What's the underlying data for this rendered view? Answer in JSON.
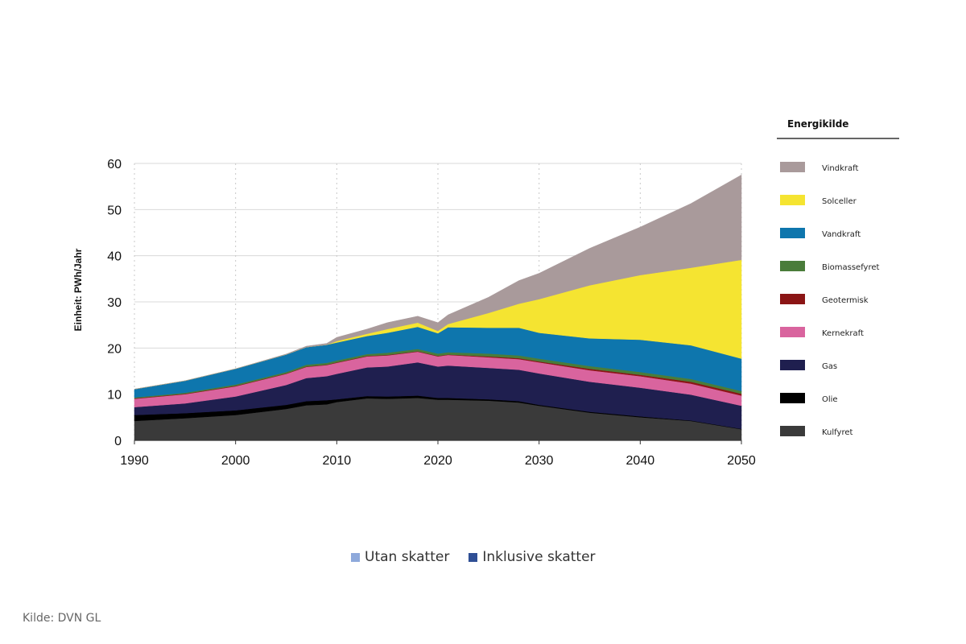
{
  "chart_data": {
    "type": "area",
    "stacked": true,
    "title": "",
    "xlabel": "",
    "ylabel": "Einheit: PWh/Jahr",
    "xlim": [
      1990,
      2050
    ],
    "ylim": [
      0,
      60
    ],
    "x_ticks": [
      "1990",
      "2000",
      "2010",
      "2020",
      "2030",
      "2040",
      "2050"
    ],
    "y_ticks": [
      "0",
      "10",
      "20",
      "30",
      "40",
      "50",
      "60"
    ],
    "grid": {
      "horizontal": "solid",
      "vertical": "dotted"
    },
    "x": [
      1990,
      1995,
      2000,
      2005,
      2007,
      2009,
      2010,
      2013,
      2015,
      2018,
      2020,
      2021,
      2025,
      2028,
      2030,
      2035,
      2040,
      2045,
      2050
    ],
    "series": [
      {
        "name": "Kulfyret",
        "color": "#3a3a3a",
        "values": [
          4.2,
          4.8,
          5.5,
          6.8,
          7.6,
          7.8,
          8.3,
          9.1,
          9.0,
          9.2,
          8.8,
          8.8,
          8.6,
          8.2,
          7.5,
          6.0,
          5.0,
          4.2,
          2.4
        ]
      },
      {
        "name": "Olie",
        "color": "#000000",
        "values": [
          1.3,
          1.1,
          1.0,
          0.9,
          0.9,
          0.9,
          0.6,
          0.5,
          0.5,
          0.5,
          0.4,
          0.4,
          0.3,
          0.3,
          0.2,
          0.2,
          0.2,
          0.1,
          0.1
        ]
      },
      {
        "name": "Gas",
        "color": "#1f1f4f",
        "values": [
          1.7,
          2.1,
          3.0,
          4.3,
          5.0,
          5.2,
          5.5,
          6.2,
          6.5,
          7.2,
          6.8,
          7.0,
          6.8,
          6.8,
          6.8,
          6.5,
          6.2,
          5.6,
          5.0
        ]
      },
      {
        "name": "Kernekraft",
        "color": "#d9649e",
        "values": [
          1.8,
          2.0,
          2.2,
          2.4,
          2.4,
          2.4,
          2.4,
          2.4,
          2.4,
          2.3,
          2.2,
          2.3,
          2.3,
          2.3,
          2.4,
          2.5,
          2.5,
          2.4,
          2.2
        ]
      },
      {
        "name": "Geotermisk",
        "color": "#8b1515",
        "values": [
          0.1,
          0.1,
          0.1,
          0.1,
          0.1,
          0.1,
          0.1,
          0.1,
          0.1,
          0.1,
          0.1,
          0.1,
          0.2,
          0.2,
          0.2,
          0.3,
          0.3,
          0.4,
          0.4
        ]
      },
      {
        "name": "Biomassefyret",
        "color": "#4a7c3a",
        "values": [
          0.2,
          0.2,
          0.3,
          0.3,
          0.4,
          0.4,
          0.4,
          0.4,
          0.5,
          0.5,
          0.5,
          0.5,
          0.6,
          0.6,
          0.6,
          0.6,
          0.6,
          0.6,
          0.6
        ]
      },
      {
        "name": "Vandkraft",
        "color": "#0e76ad",
        "values": [
          1.8,
          2.6,
          3.4,
          3.8,
          3.8,
          3.9,
          3.9,
          3.9,
          4.3,
          4.8,
          4.4,
          5.4,
          5.6,
          6.0,
          5.6,
          6.0,
          7.0,
          7.3,
          7.0
        ]
      },
      {
        "name": "Solceller",
        "color": "#f5e431",
        "values": [
          0,
          0,
          0,
          0,
          0,
          0,
          0.3,
          0.5,
          0.8,
          0.9,
          0.5,
          0.7,
          3.2,
          5.2,
          7.3,
          11.5,
          14.0,
          16.8,
          21.4
        ]
      },
      {
        "name": "Vindkraft",
        "color": "#a99a9b",
        "values": [
          0,
          0,
          0,
          0.1,
          0.2,
          0.3,
          0.8,
          1.0,
          1.4,
          1.4,
          1.8,
          2.0,
          3.4,
          5.0,
          5.6,
          8.0,
          10.4,
          13.9,
          18.4
        ]
      }
    ],
    "legend": {
      "title": "Energikilde",
      "placement": "right",
      "order": [
        "Vindkraft",
        "Solceller",
        "Vandkraft",
        "Biomassefyret",
        "Geotermisk",
        "Kernekraft",
        "Gas",
        "Olie",
        "Kulfyret"
      ]
    }
  },
  "bottom_legend": [
    {
      "label": "Utan skatter",
      "color": "#8ea9db"
    },
    {
      "label": "Inklusive skatter",
      "color": "#2f4f95"
    }
  ],
  "source": "Kilde: DVN GL"
}
